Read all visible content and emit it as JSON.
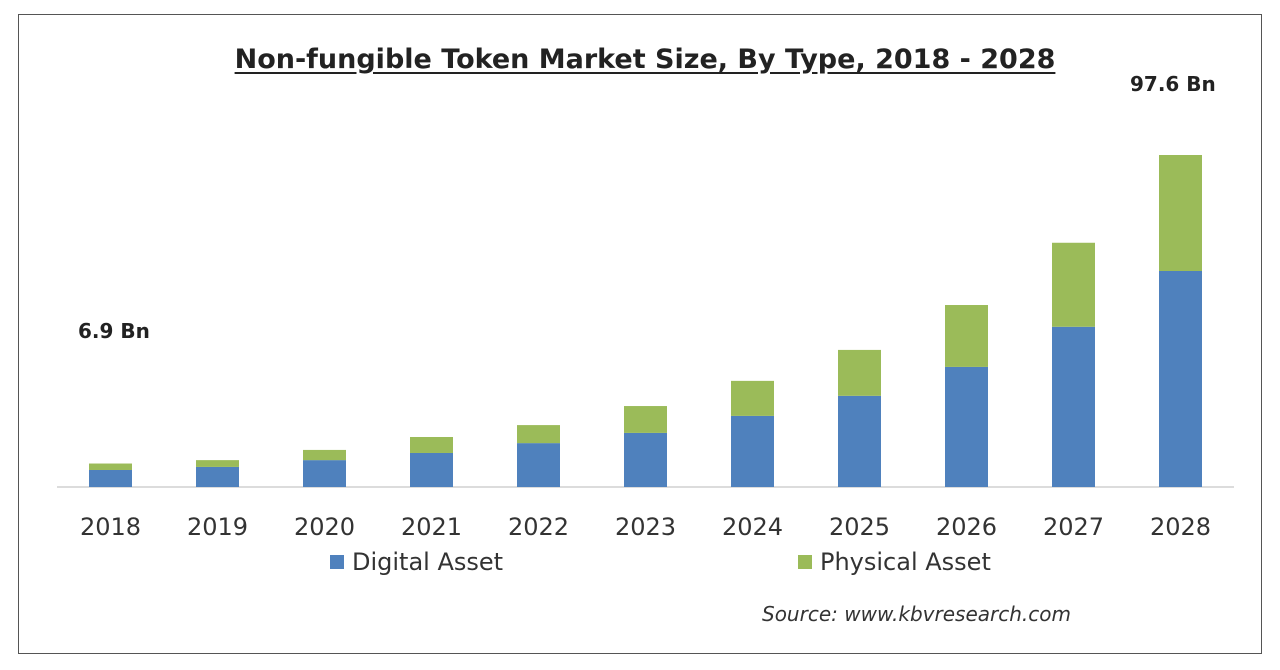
{
  "chart_data": {
    "type": "bar",
    "stacked": true,
    "title": "Non-fungible Token Market Size, By Type, 2018 - 2028",
    "categories": [
      "2018",
      "2019",
      "2020",
      "2021",
      "2022",
      "2023",
      "2024",
      "2025",
      "2026",
      "2027",
      "2028"
    ],
    "series": [
      {
        "name": "Digital Asset",
        "color": "#4f81bd",
        "values": [
          5.0,
          5.9,
          7.9,
          10.0,
          12.9,
          15.9,
          20.9,
          26.8,
          35.3,
          47.1,
          63.5
        ]
      },
      {
        "name": "Physical Asset",
        "color": "#9bbb59",
        "values": [
          1.9,
          2.0,
          3.0,
          4.7,
          5.3,
          7.9,
          10.3,
          13.5,
          18.2,
          24.7,
          34.1
        ]
      }
    ],
    "ylim": [
      0,
      100
    ],
    "grid": false,
    "legend": "bottom",
    "annotations": [
      "6.9 Bn",
      "97.6 Bn"
    ],
    "xlabel": "",
    "ylabel": ""
  },
  "source": "Source:  www.kbvresearch.com"
}
